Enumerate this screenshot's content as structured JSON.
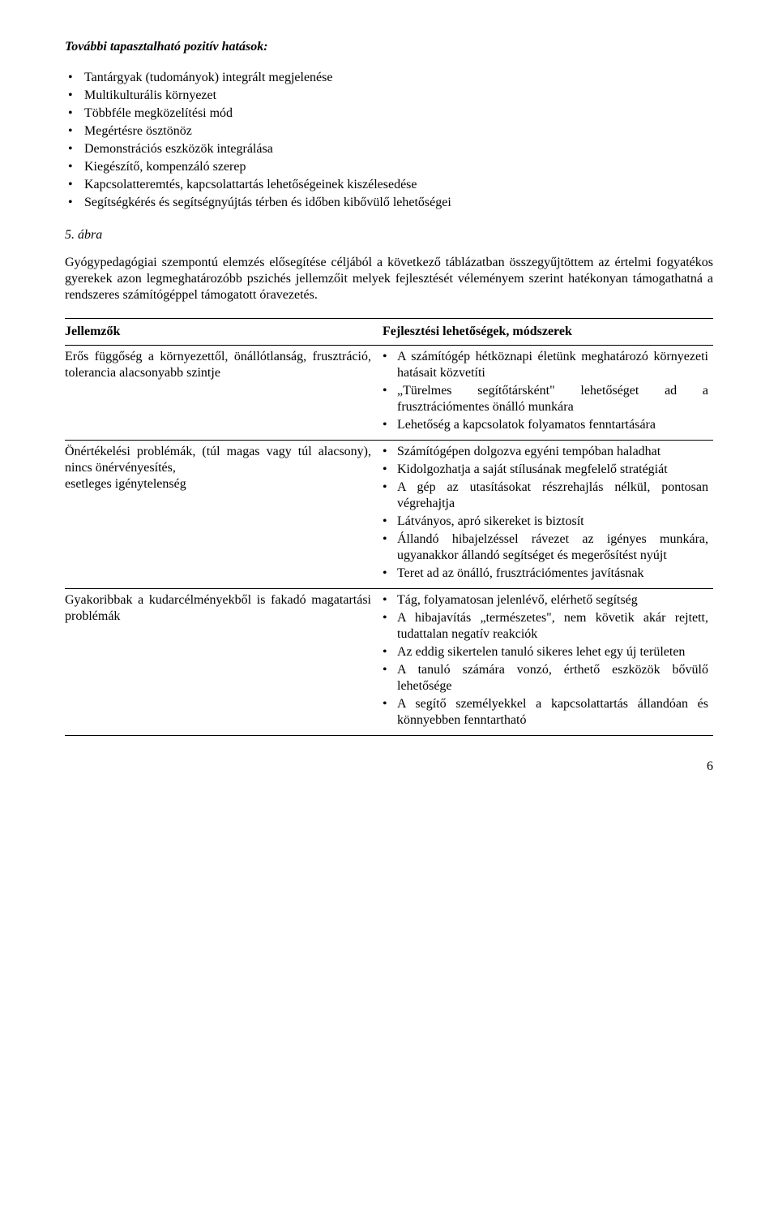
{
  "heading": "További tapasztalható pozitív hatások:",
  "bullets": [
    "Tantárgyak (tudományok) integrált megjelenése",
    "Multikulturális környezet",
    "Többféle megközelítési mód",
    "Megértésre ösztönöz",
    "Demonstrációs eszközök integrálása",
    "Kiegészítő, kompenzáló szerep",
    "Kapcsolatteremtés, kapcsolattartás lehetőségeinek kiszélesedése",
    "Segítségkérés és segítségnyújtás térben és időben kibővülő lehetőségei"
  ],
  "figure_label": "5. ábra",
  "intro_para": "Gyógypedagógiai szempontú elemzés elősegítése céljából a következő táblázatban összegyűjtöttem az értelmi fogyatékos gyerekek azon legmeghatározóbb pszichés jellemzőit melyek fejlesztését véleményem szerint hatékonyan támogathatná a rendszeres számítógéppel támogatott óravezetés.",
  "table": {
    "header_left": "Jellemzők",
    "header_right": "Fejlesztési lehetőségek, módszerek",
    "rows": [
      {
        "left": "Erős függőség a környezettől, önállótlanság, frusztráció, tolerancia alacsonyabb szintje",
        "right": [
          "A számítógép hétköznapi életünk meghatározó környezeti hatásait közvetíti",
          "„Türelmes segítőtársként\" lehetőséget ad a frusztrációmentes önálló munkára",
          "Lehetőség a kapcsolatok folyamatos fenntartására"
        ]
      },
      {
        "left": "Önértékelési problémák, (túl magas vagy túl alacsony), nincs önérvényesítés,\nesetleges igénytelenség",
        "right": [
          "Számítógépen dolgozva egyéni tempóban haladhat",
          "Kidolgozhatja a saját stílusának megfelelő stratégiát",
          "A gép az utasításokat részrehajlás nélkül, pontosan végrehajtja",
          "Látványos, apró sikereket is biztosít",
          "Állandó hibajelzéssel rávezet az igényes munkára, ugyanakkor állandó segítséget és megerősítést nyújt",
          "Teret ad az önálló, frusztrációmentes javításnak"
        ]
      },
      {
        "left": "Gyakoribbak a kudarcélményekből is fakadó magatartási problémák",
        "right": [
          "Tág, folyamatosan jelenlévő, elérhető segítség",
          "A hibajavítás „természetes\", nem követik akár rejtett, tudattalan negatív reakciók",
          "Az eddig sikertelen tanuló sikeres lehet egy új területen",
          "A tanuló számára vonzó, érthető eszközök bővülő lehetősége",
          "A segítő személyekkel a kapcsolattartás állandóan és könnyebben fenntartható"
        ]
      }
    ]
  },
  "page_number": "6"
}
